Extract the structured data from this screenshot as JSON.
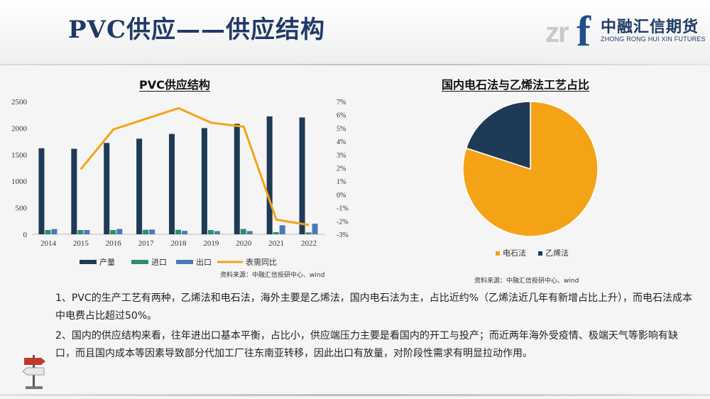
{
  "header": {
    "title": "PVC供应——供应结构",
    "logo_cn": "中融汇信期货",
    "logo_en": "ZHONG RONG HUI XIN FUTURES",
    "logo_mark": "zrf"
  },
  "colors": {
    "title": "#1f3a66",
    "production": "#1f3a56",
    "imports": "#2e8b74",
    "exports": "#4a7ab5",
    "yoy_line": "#f5a316",
    "pie_calcium_carbide": "#f5a316",
    "pie_ethylene": "#1f3a56"
  },
  "chart_data": [
    {
      "type": "bar",
      "title": "PVC供应结构",
      "categories": [
        "2014",
        "2015",
        "2016",
        "2017",
        "2018",
        "2019",
        "2020",
        "2021",
        "2022"
      ],
      "series": [
        {
          "name": "产量",
          "type": "bar",
          "axis": "left",
          "values": [
            1620,
            1610,
            1720,
            1800,
            1890,
            2000,
            2080,
            2220,
            2200
          ]
        },
        {
          "name": "进口",
          "type": "bar",
          "axis": "left",
          "values": [
            80,
            80,
            80,
            85,
            85,
            80,
            100,
            40,
            35
          ]
        },
        {
          "name": "出口",
          "type": "bar",
          "axis": "left",
          "values": [
            100,
            80,
            100,
            90,
            65,
            60,
            60,
            170,
            200
          ]
        },
        {
          "name": "表需同比",
          "type": "line",
          "axis": "right",
          "values": [
            null,
            1.9,
            4.9,
            5.7,
            6.5,
            5.4,
            5.1,
            -1.9,
            -2.3
          ]
        }
      ],
      "ylim": [
        0,
        2500
      ],
      "yticks": [
        "0",
        "500",
        "1000",
        "1500",
        "2000",
        "2500"
      ],
      "y2lim": [
        -3,
        7
      ],
      "y2ticks": [
        "-3%",
        "-2%",
        "-1%",
        "0%",
        "1%",
        "2%",
        "3%",
        "4%",
        "5%",
        "6%",
        "7%"
      ],
      "legend": "bottom",
      "source": "资料来源：中融汇信投研中心、wind"
    },
    {
      "type": "pie",
      "title": "国内电石法与乙烯法工艺占比",
      "labels": [
        "电石法",
        "乙烯法"
      ],
      "values": [
        80,
        20
      ],
      "legend": "bottom",
      "source": "资料来源：中融汇信投研中心、wind"
    }
  ],
  "body": {
    "paragraphs": [
      "1、PVC的生产工艺有两种，乙烯法和电石法，海外主要是乙烯法，国内电石法为主，占比近约%（乙烯法近几年有新增占比上升），而电石法成本中电费占比超过50%。",
      "2、国内的供应结构来看，往年进出口基本平衡，占比小，供应端压力主要是看国内的开工与投产；而近两年海外受疫情、极端天气等影响有缺口，而且国内成本等因素导致部分代加工厂往东南亚转移，因此出口有放量，对阶段性需求有明显拉动作用。"
    ]
  }
}
